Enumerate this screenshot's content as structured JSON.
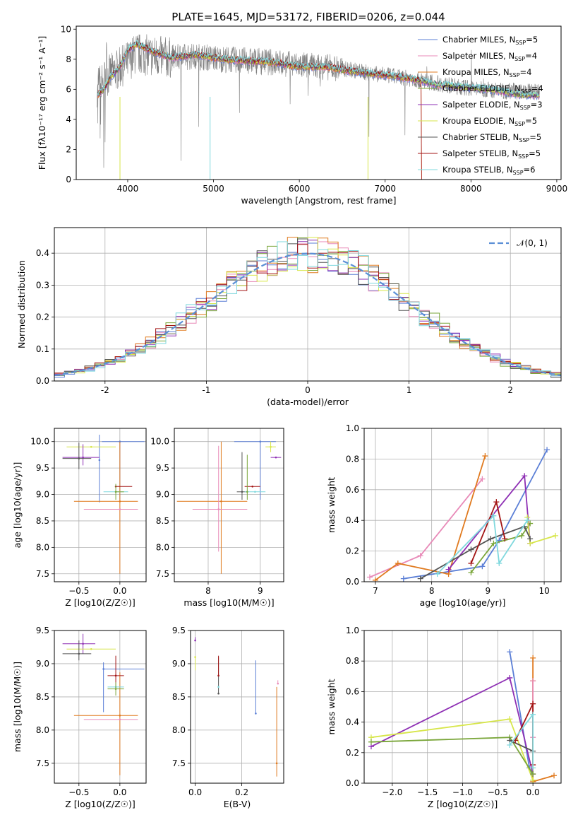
{
  "title": "PLATE=1645, MJD=53172, FIBERID=0206, z=0.044",
  "colors": {
    "chabrier_miles": "#5b7fd6",
    "salpeter_miles": "#e88ab8",
    "kroupa_miles": "#e07a1f",
    "chabrier_elodie": "#7aa63a",
    "salpeter_elodie": "#8e2fb4",
    "kroupa_elodie": "#d7e64a",
    "chabrier_stelib": "#555555",
    "salpeter_stelib": "#a31515",
    "kroupa_stelib": "#7fd8dd"
  },
  "chart_data": [
    {
      "type": "line",
      "xlabel": "wavelength [Angstrom, rest frame]",
      "ylabel_html": "Flux [fλ10⁻¹⁷ erg cm⁻² s⁻¹ A⁻¹]",
      "xlim": [
        3400,
        9050
      ],
      "ylim": [
        0,
        10.2
      ],
      "xticks": [
        4000,
        5000,
        6000,
        7000,
        8000,
        9000
      ],
      "yticks": [
        0,
        2,
        4,
        6,
        8,
        10
      ],
      "legend_loc": "right",
      "legend": [
        {
          "label": "Chabrier MILES, N",
          "sub": "SSP",
          "tail": "=5",
          "color": "#5b7fd6"
        },
        {
          "label": "Salpeter MILES, N",
          "sub": "SSP",
          "tail": "=4",
          "color": "#e88ab8"
        },
        {
          "label": "Kroupa MILES, N",
          "sub": "SSP",
          "tail": "=4",
          "color": "#e07a1f"
        },
        {
          "label": "Chabrier ELODIE, N",
          "sub": "SSP",
          "tail": "=4",
          "color": "#7aa63a"
        },
        {
          "label": "Salpeter ELODIE, N",
          "sub": "SSP",
          "tail": "=3",
          "color": "#8e2fb4"
        },
        {
          "label": "Kroupa ELODIE, N",
          "sub": "SSP",
          "tail": "=5",
          "color": "#d7e64a"
        },
        {
          "label": "Chabrier STELIB, N",
          "sub": "SSP",
          "tail": "=5",
          "color": "#555555"
        },
        {
          "label": "Salpeter STELIB, N",
          "sub": "SSP",
          "tail": "=5",
          "color": "#a31515"
        },
        {
          "label": "Kroupa STELIB, N",
          "sub": "SSP",
          "tail": "=6",
          "color": "#7fd8dd"
        }
      ],
      "data_trace": {
        "name": "data",
        "x": [
          3650,
          3800,
          3950,
          4100,
          4300,
          4500,
          4800,
          5100,
          5400,
          5700,
          6000,
          6300,
          6600,
          6900,
          7200,
          7500,
          7800,
          8100,
          8400,
          8800
        ],
        "y": [
          6.2,
          7.0,
          7.6,
          8.4,
          8.2,
          8.1,
          8.2,
          8.0,
          7.9,
          7.8,
          7.6,
          7.5,
          7.3,
          7.0,
          6.8,
          6.5,
          6.2,
          6.0,
          5.9,
          5.8
        ]
      },
      "model_trace": {
        "x": [
          3650,
          3720,
          3800,
          3900,
          4000,
          4100,
          4300,
          4500,
          4800,
          5100,
          5400,
          5700,
          6000,
          6300,
          6600,
          6900,
          7200,
          7400,
          7600,
          7800,
          8000,
          8200,
          8400,
          8600,
          8800
        ],
        "y": [
          5.6,
          6.0,
          6.8,
          7.4,
          8.6,
          9.0,
          8.5,
          8.1,
          8.3,
          8.0,
          7.9,
          7.8,
          7.5,
          7.5,
          7.2,
          7.0,
          6.8,
          6.6,
          6.3,
          6.2,
          6.1,
          6.0,
          5.8,
          5.6,
          5.6
        ]
      }
    },
    {
      "type": "step",
      "xlabel": "(data-model)/error",
      "ylabel": "Normed distribution",
      "xlim": [
        -2.5,
        2.5
      ],
      "ylim": [
        0,
        0.48
      ],
      "xticks": [
        -2,
        -1,
        0,
        1,
        2
      ],
      "yticks": [
        0.0,
        0.1,
        0.2,
        0.3,
        0.4
      ],
      "legend_loc": "top-right",
      "legend_label": "𝒩(0, 1)",
      "gaussian_color": "#5b8fd6"
    },
    {
      "type": "scatter-errorbars",
      "xlabel": "Z [log10(Z/Z☉)]",
      "ylabel": "age  [log10(age/yr)]",
      "xlim": [
        -0.8,
        0.32
      ],
      "ylim": [
        7.35,
        10.25
      ],
      "xticks": [
        -0.5,
        0.0
      ],
      "yticks": [
        7.5,
        8.0,
        8.5,
        9.0,
        9.5,
        10.0
      ],
      "points": [
        {
          "c": "chabrier_miles",
          "x": 0.0,
          "y": 10.0,
          "xe": [
            0.22,
            0.3
          ],
          "ye": [
            1.1,
            0.0
          ]
        },
        {
          "c": "chabrier_miles",
          "x": -0.25,
          "y": 9.65,
          "xe": [
            0.0,
            0.0
          ],
          "ye": [
            0.8,
            0.48
          ]
        },
        {
          "c": "kroupa_miles",
          "x": 0.0,
          "y": 8.87,
          "xe": [
            0.56,
            0.22
          ],
          "ye": [
            1.37,
            1.13
          ]
        },
        {
          "c": "salpeter_miles",
          "x": 0.0,
          "y": 8.72,
          "xe": [
            0.44,
            0.22
          ],
          "ye": [
            0.0,
            0.0
          ]
        },
        {
          "c": "kroupa_elodie",
          "x": -0.35,
          "y": 9.9,
          "xe": [
            0.3,
            0.3
          ],
          "ye": [
            0.0,
            0.0
          ]
        },
        {
          "c": "salpeter_elodie",
          "x": -0.45,
          "y": 9.7,
          "xe": [
            0.25,
            0.2
          ],
          "ye": [
            0.15,
            0.25
          ]
        },
        {
          "c": "chabrier_stelib",
          "x": -0.5,
          "y": 9.68,
          "xe": [
            0.2,
            0.15
          ],
          "ye": [
            0.2,
            0.3
          ]
        },
        {
          "c": "salpeter_stelib",
          "x": -0.05,
          "y": 9.15,
          "xe": [
            0.0,
            0.2
          ],
          "ye": [
            0.0,
            0.0
          ]
        },
        {
          "c": "kroupa_stelib",
          "x": -0.05,
          "y": 9.05,
          "xe": [
            0.15,
            0.15
          ],
          "ye": [
            0.0,
            0.0
          ]
        },
        {
          "c": "chabrier_elodie",
          "x": -0.05,
          "y": 9.05,
          "xe": [
            0.0,
            0.1
          ],
          "ye": [
            0.15,
            0.15
          ]
        }
      ]
    },
    {
      "type": "scatter-errorbars",
      "xlabel": "mass [log10(M/M☉)]",
      "ylabel": "",
      "xlim": [
        7.35,
        9.45
      ],
      "ylim": [
        7.35,
        10.25
      ],
      "xticks": [
        8,
        9
      ],
      "yticks": [
        7.5,
        8.0,
        8.5,
        9.0,
        9.5,
        10.0
      ],
      "points": [
        {
          "c": "chabrier_miles",
          "x": 9.0,
          "y": 10.0,
          "xe": [
            0.5,
            0.3
          ],
          "ye": [
            1.1,
            0.0
          ]
        },
        {
          "c": "kroupa_miles",
          "x": 8.25,
          "y": 8.87,
          "xe": [
            0.85,
            0.5
          ],
          "ye": [
            1.37,
            1.13
          ]
        },
        {
          "c": "salpeter_miles",
          "x": 8.2,
          "y": 8.72,
          "xe": [
            0.5,
            0.55
          ],
          "ye": [
            0.8,
            1.2
          ]
        },
        {
          "c": "kroupa_elodie",
          "x": 9.2,
          "y": 9.9,
          "xe": [
            0.1,
            0.1
          ],
          "ye": [
            0.1,
            0.1
          ]
        },
        {
          "c": "salpeter_elodie",
          "x": 9.3,
          "y": 9.7,
          "xe": [
            0.1,
            0.1
          ],
          "ye": [
            0.0,
            0.0
          ]
        },
        {
          "c": "chabrier_stelib",
          "x": 8.65,
          "y": 9.05,
          "xe": [
            0.1,
            0.1
          ],
          "ye": [
            0.15,
            0.75
          ]
        },
        {
          "c": "salpeter_stelib",
          "x": 8.85,
          "y": 9.15,
          "xe": [
            0.15,
            0.15
          ],
          "ye": [
            0.0,
            0.0
          ]
        },
        {
          "c": "kroupa_stelib",
          "x": 8.9,
          "y": 9.05,
          "xe": [
            0.2,
            0.2
          ],
          "ye": [
            0.0,
            0.0
          ]
        },
        {
          "c": "chabrier_elodie",
          "x": 8.75,
          "y": 9.05,
          "xe": [
            0.0,
            0.0
          ],
          "ye": [
            0.15,
            0.7
          ]
        }
      ]
    },
    {
      "type": "line",
      "xlabel": "age  [log10(age/yr)]",
      "ylabel": "mass weight",
      "xlim": [
        6.8,
        10.3
      ],
      "ylim": [
        0,
        1.0
      ],
      "xticks": [
        7,
        8,
        9,
        10
      ],
      "yticks": [
        0.0,
        0.2,
        0.4,
        0.6,
        0.8,
        1.0
      ],
      "series": [
        {
          "c": "chabrier_miles",
          "x": [
            7.5,
            8.9,
            9.2,
            10.05
          ],
          "y": [
            0.02,
            0.1,
            0.27,
            0.86
          ]
        },
        {
          "c": "salpeter_miles",
          "x": [
            6.9,
            7.8,
            8.9
          ],
          "y": [
            0.03,
            0.17,
            0.67
          ]
        },
        {
          "c": "kroupa_miles",
          "x": [
            7.0,
            7.4,
            8.3,
            8.95
          ],
          "y": [
            0.01,
            0.12,
            0.05,
            0.82
          ]
        },
        {
          "c": "chabrier_elodie",
          "x": [
            8.7,
            9.1,
            9.6,
            9.75
          ],
          "y": [
            0.06,
            0.25,
            0.3,
            0.38
          ]
        },
        {
          "c": "salpeter_elodie",
          "x": [
            8.3,
            9.65,
            9.75
          ],
          "y": [
            0.08,
            0.69,
            0.25
          ]
        },
        {
          "c": "kroupa_elodie",
          "x": [
            9.7,
            9.75,
            10.2
          ],
          "y": [
            0.42,
            0.25,
            0.3
          ]
        },
        {
          "c": "chabrier_stelib",
          "x": [
            7.8,
            8.7,
            9.05,
            9.65,
            9.75
          ],
          "y": [
            0.02,
            0.21,
            0.28,
            0.36,
            0.28
          ]
        },
        {
          "c": "salpeter_stelib",
          "x": [
            8.7,
            9.15,
            9.3
          ],
          "y": [
            0.12,
            0.52,
            0.28
          ]
        },
        {
          "c": "kroupa_stelib",
          "x": [
            8.1,
            9.1,
            9.2,
            9.7
          ],
          "y": [
            0.05,
            0.43,
            0.12,
            0.4
          ]
        }
      ]
    },
    {
      "type": "scatter-errorbars",
      "xlabel": "Z [log10(Z/Z☉)]",
      "ylabel": "mass [log10(M/M☉)]",
      "xlim": [
        -0.8,
        0.32
      ],
      "ylim": [
        7.2,
        9.5
      ],
      "xticks": [
        -0.5,
        0.0
      ],
      "yticks": [
        7.5,
        8.0,
        8.5,
        9.0,
        9.5
      ],
      "points": [
        {
          "c": "chabrier_miles",
          "x": -0.2,
          "y": 8.92,
          "xe": [
            0.0,
            0.5
          ],
          "ye": [
            0.65,
            0.1
          ]
        },
        {
          "c": "kroupa_miles",
          "x": 0.0,
          "y": 8.22,
          "xe": [
            0.56,
            0.22
          ],
          "ye": [
            0.9,
            0.65
          ]
        },
        {
          "c": "salpeter_miles",
          "x": 0.0,
          "y": 8.16,
          "xe": [
            0.44,
            0.22
          ],
          "ye": [
            0.0,
            0.0
          ]
        },
        {
          "c": "salpeter_elodie",
          "x": -0.45,
          "y": 9.3,
          "xe": [
            0.25,
            0.15
          ],
          "ye": [
            0.15,
            0.15
          ]
        },
        {
          "c": "kroupa_elodie",
          "x": -0.35,
          "y": 9.22,
          "xe": [
            0.3,
            0.3
          ],
          "ye": [
            0.0,
            0.0
          ]
        },
        {
          "c": "chabrier_stelib",
          "x": -0.5,
          "y": 9.15,
          "xe": [
            0.2,
            0.15
          ],
          "ye": [
            0.1,
            0.2
          ]
        },
        {
          "c": "salpeter_stelib",
          "x": -0.05,
          "y": 8.82,
          "xe": [
            0.1,
            0.1
          ],
          "ye": [
            0.2,
            0.3
          ]
        },
        {
          "c": "kroupa_stelib",
          "x": -0.05,
          "y": 8.65,
          "xe": [
            0.1,
            0.1
          ],
          "ye": [
            0.0,
            0.0
          ]
        },
        {
          "c": "chabrier_elodie",
          "x": -0.05,
          "y": 8.62,
          "xe": [
            0.1,
            0.1
          ],
          "ye": [
            0.1,
            0.1
          ]
        }
      ]
    },
    {
      "type": "scatter-errorbars",
      "xlabel": "E(B-V)",
      "ylabel": "",
      "xlim": [
        -0.02,
        0.38
      ],
      "ylim": [
        7.2,
        9.5
      ],
      "xticks": [
        0.0,
        0.2
      ],
      "yticks": [
        7.5,
        8.0,
        8.5,
        9.0,
        9.5
      ],
      "points": [
        {
          "c": "chabrier_miles",
          "x": 0.26,
          "y": 8.25,
          "xe": [
            0,
            0
          ],
          "ye": [
            0.0,
            0.8
          ]
        },
        {
          "c": "kroupa_miles",
          "x": 0.35,
          "y": 7.5,
          "xe": [
            0,
            0
          ],
          "ye": [
            0.2,
            1.15
          ]
        },
        {
          "c": "salpeter_miles",
          "x": 0.355,
          "y": 8.7,
          "xe": [
            0,
            0
          ],
          "ye": [
            0.0,
            0.05
          ]
        },
        {
          "c": "salpeter_elodie",
          "x": 0.0,
          "y": 9.35,
          "xe": [
            0,
            0
          ],
          "ye": [
            0.0,
            0.05
          ]
        },
        {
          "c": "kroupa_elodie",
          "x": 0.0,
          "y": 9.1,
          "xe": [
            0,
            0
          ],
          "ye": [
            0.2,
            0.0
          ]
        },
        {
          "c": "chabrier_stelib",
          "x": 0.1,
          "y": 8.55,
          "xe": [
            0,
            0
          ],
          "ye": [
            0.0,
            0.55
          ]
        },
        {
          "c": "salpeter_stelib",
          "x": 0.1,
          "y": 8.82,
          "xe": [
            0,
            0
          ],
          "ye": [
            0.0,
            0.3
          ]
        },
        {
          "c": "kroupa_stelib",
          "x": 0.1,
          "y": 8.65,
          "xe": [
            0,
            0
          ],
          "ye": [
            0.0,
            0.0
          ]
        }
      ]
    },
    {
      "type": "line",
      "xlabel": "Z [log10(Z/Z☉)]",
      "ylabel": "mass weight",
      "xlim": [
        -2.4,
        0.4
      ],
      "ylim": [
        0,
        1.0
      ],
      "xticks": [
        -2.0,
        -1.5,
        -1.0,
        -0.5,
        0.0
      ],
      "yticks": [
        0.0,
        0.2,
        0.4,
        0.6,
        0.8,
        1.0
      ],
      "series": [
        {
          "c": "chabrier_miles",
          "x": [
            -0.33,
            -0.05,
            0.0
          ],
          "y": [
            0.86,
            0.1,
            0.02
          ]
        },
        {
          "c": "kroupa_miles",
          "x": [
            0.0,
            0.0,
            0.0,
            0.3
          ],
          "y": [
            0.82,
            0.67,
            0.01,
            0.05
          ]
        },
        {
          "c": "salpeter_miles",
          "x": [
            0.0,
            0.0
          ],
          "y": [
            0.67,
            0.3
          ]
        },
        {
          "c": "salpeter_elodie",
          "x": [
            -2.3,
            -0.33,
            0.0
          ],
          "y": [
            0.24,
            0.69,
            0.06
          ]
        },
        {
          "c": "kroupa_elodie",
          "x": [
            -2.3,
            -0.33,
            0.0
          ],
          "y": [
            0.3,
            0.42,
            0.02
          ]
        },
        {
          "c": "chabrier_elodie",
          "x": [
            -2.3,
            -0.33,
            0.0
          ],
          "y": [
            0.27,
            0.3,
            0.06
          ]
        },
        {
          "c": "chabrier_stelib",
          "x": [
            -0.33,
            0.0
          ],
          "y": [
            0.28,
            0.21
          ]
        },
        {
          "c": "salpeter_stelib",
          "x": [
            -0.25,
            0.0,
            0.0
          ],
          "y": [
            0.28,
            0.52,
            0.12
          ]
        },
        {
          "c": "kroupa_stelib",
          "x": [
            -0.33,
            0.0,
            0.0
          ],
          "y": [
            0.25,
            0.45,
            0.1
          ]
        }
      ]
    }
  ]
}
